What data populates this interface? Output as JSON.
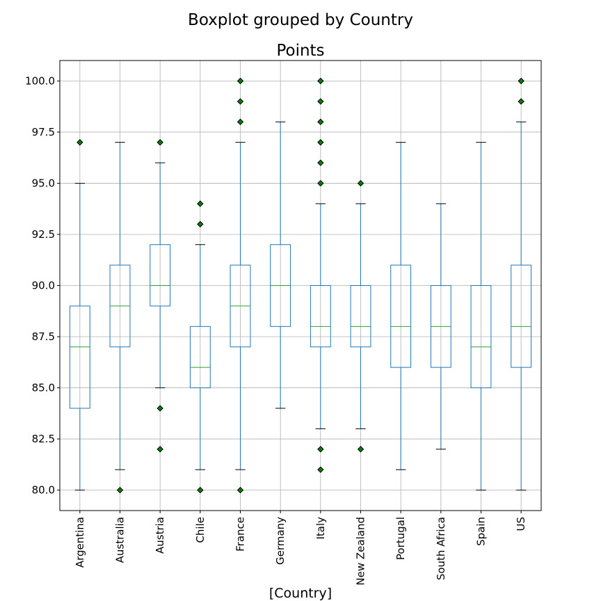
{
  "figure": {
    "suptitle": "Boxplot grouped by Country"
  },
  "chart_data": {
    "type": "box",
    "title": "Points",
    "xlabel": "[Country]",
    "ylabel": "",
    "ylim": [
      79.0,
      101.0
    ],
    "yticks": [
      "80.0",
      "82.5",
      "85.0",
      "87.5",
      "90.0",
      "92.5",
      "95.0",
      "97.5",
      "100.0"
    ],
    "ytick_values": [
      80,
      82.5,
      85,
      87.5,
      90,
      92.5,
      95,
      97.5,
      100
    ],
    "grid": true,
    "colors": {
      "box": "#1f77b4",
      "median": "#2ca02c",
      "flier_fill": "#008000",
      "flier_edge": "#000000",
      "cap": "#000000",
      "grid": "#b0b0b0"
    },
    "categories": [
      "Argentina",
      "Australia",
      "Austria",
      "Chile",
      "France",
      "Germany",
      "Italy",
      "New Zealand",
      "Portugal",
      "South Africa",
      "Spain",
      "US"
    ],
    "boxes": [
      {
        "category": "Argentina",
        "whisker_low": 80,
        "q1": 84,
        "median": 87,
        "q3": 89,
        "whisker_high": 95,
        "fliers": [
          97
        ]
      },
      {
        "category": "Australia",
        "whisker_low": 81,
        "q1": 87,
        "median": 89,
        "q3": 91,
        "whisker_high": 97,
        "fliers": [
          80
        ]
      },
      {
        "category": "Austria",
        "whisker_low": 85,
        "q1": 89,
        "median": 90,
        "q3": 92,
        "whisker_high": 96,
        "fliers": [
          97,
          84,
          82
        ]
      },
      {
        "category": "Chile",
        "whisker_low": 81,
        "q1": 85,
        "median": 86,
        "q3": 88,
        "whisker_high": 92,
        "fliers": [
          94,
          93,
          80
        ]
      },
      {
        "category": "France",
        "whisker_low": 81,
        "q1": 87,
        "median": 89,
        "q3": 91,
        "whisker_high": 97,
        "fliers": [
          100,
          99,
          98,
          80
        ]
      },
      {
        "category": "Germany",
        "whisker_low": 84,
        "q1": 88,
        "median": 90,
        "q3": 92,
        "whisker_high": 98,
        "fliers": []
      },
      {
        "category": "Italy",
        "whisker_low": 83,
        "q1": 87,
        "median": 88,
        "q3": 90,
        "whisker_high": 94,
        "fliers": [
          100,
          99,
          98,
          97,
          96,
          95,
          82,
          81
        ]
      },
      {
        "category": "New Zealand",
        "whisker_low": 83,
        "q1": 87,
        "median": 88,
        "q3": 90,
        "whisker_high": 94,
        "fliers": [
          95,
          82
        ]
      },
      {
        "category": "Portugal",
        "whisker_low": 81,
        "q1": 86,
        "median": 88,
        "q3": 91,
        "whisker_high": 97,
        "fliers": []
      },
      {
        "category": "South Africa",
        "whisker_low": 82,
        "q1": 86,
        "median": 88,
        "q3": 90,
        "whisker_high": 94,
        "fliers": []
      },
      {
        "category": "Spain",
        "whisker_low": 80,
        "q1": 85,
        "median": 87,
        "q3": 90,
        "whisker_high": 97,
        "fliers": []
      },
      {
        "category": "US",
        "whisker_low": 80,
        "q1": 86,
        "median": 88,
        "q3": 91,
        "whisker_high": 98,
        "fliers": [
          100,
          99
        ]
      }
    ]
  }
}
